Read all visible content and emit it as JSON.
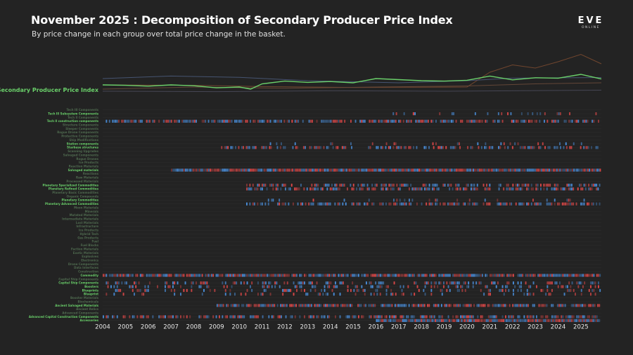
{
  "header": {
    "title": "November 2025 : Decomposition of Secondary Producer Price Index",
    "subtitle": "By price change in each group over total price change in the basket."
  },
  "logo": {
    "main": "EVE",
    "sub": "ONLINE"
  },
  "colors": {
    "background": "#232323",
    "index_line": "#6ad06a",
    "positive_change": "#e04848",
    "negative_change": "#4a8fdc",
    "active_label": "#6ad06a",
    "inactive_label": "#4f6a4f",
    "row_grid": "#2c2c2c"
  },
  "chart_data": {
    "type": "heatmap",
    "title": "November 2025 : Decomposition of Secondary Producer Price Index",
    "subtitle": "By price change in each group over total price change in the basket.",
    "x_axis": {
      "ticks": [
        "2004",
        "2005",
        "2006",
        "2007",
        "2008",
        "2009",
        "2010",
        "2011",
        "2012",
        "2013",
        "2014",
        "2015",
        "2016",
        "2017",
        "2018",
        "2019",
        "2020",
        "2021",
        "2022",
        "2023",
        "2024",
        "2025"
      ],
      "range": [
        2004,
        2025.9
      ]
    },
    "main_series": {
      "name": "Secondary Producer Price Index",
      "points": [
        [
          2004.0,
          0.5
        ],
        [
          2005.0,
          0.48
        ],
        [
          2006.0,
          0.44
        ],
        [
          2007.0,
          0.5
        ],
        [
          2008.0,
          0.46
        ],
        [
          2009.0,
          0.36
        ],
        [
          2010.0,
          0.4
        ],
        [
          2010.5,
          0.3
        ],
        [
          2011.0,
          0.55
        ],
        [
          2012.0,
          0.68
        ],
        [
          2013.0,
          0.62
        ],
        [
          2014.0,
          0.66
        ],
        [
          2015.0,
          0.6
        ],
        [
          2016.0,
          0.8
        ],
        [
          2017.0,
          0.75
        ],
        [
          2018.0,
          0.7
        ],
        [
          2019.0,
          0.68
        ],
        [
          2020.0,
          0.72
        ],
        [
          2021.0,
          0.92
        ],
        [
          2022.0,
          0.74
        ],
        [
          2023.0,
          0.84
        ],
        [
          2024.0,
          0.82
        ],
        [
          2025.0,
          1.0
        ],
        [
          2025.9,
          0.78
        ]
      ]
    },
    "background_series": [
      {
        "points": [
          [
            2004.0,
            0.5
          ],
          [
            2008.0,
            0.48
          ],
          [
            2011.0,
            0.42
          ],
          [
            2015.0,
            0.38
          ],
          [
            2020.0,
            0.4
          ],
          [
            2021.0,
            1.1
          ],
          [
            2022.0,
            1.45
          ],
          [
            2023.0,
            1.3
          ],
          [
            2024.0,
            1.6
          ],
          [
            2025.0,
            1.95
          ],
          [
            2025.9,
            1.5
          ]
        ]
      },
      {
        "points": [
          [
            2004.0,
            0.8
          ],
          [
            2007.0,
            0.92
          ],
          [
            2010.0,
            0.86
          ],
          [
            2013.0,
            0.7
          ],
          [
            2017.0,
            0.6
          ],
          [
            2020.0,
            0.7
          ],
          [
            2022.0,
            0.82
          ],
          [
            2025.9,
            0.85
          ]
        ]
      },
      {
        "points": [
          [
            2004.0,
            0.3
          ],
          [
            2008.0,
            0.4
          ],
          [
            2012.0,
            0.34
          ],
          [
            2016.0,
            0.4
          ],
          [
            2020.0,
            0.45
          ],
          [
            2023.0,
            0.55
          ],
          [
            2025.9,
            0.6
          ]
        ]
      },
      {
        "points": [
          [
            2004.0,
            0.2
          ],
          [
            2009.0,
            0.18
          ],
          [
            2014.0,
            0.22
          ],
          [
            2019.0,
            0.2
          ],
          [
            2025.9,
            0.25
          ]
        ]
      }
    ],
    "categories": [
      {
        "label": "Tech III Components",
        "active": false
      },
      {
        "label": "Tech III Subsystem Components",
        "active": true,
        "level": 0.15,
        "start": 2016.6
      },
      {
        "label": "Tech II Components",
        "active": false
      },
      {
        "label": "Tech II construction components",
        "active": true,
        "level": 0.7,
        "start": 2004.0
      },
      {
        "label": "Structure Components",
        "active": false
      },
      {
        "label": "Sleeper Components",
        "active": false
      },
      {
        "label": "Rogue Drone Components",
        "active": false
      },
      {
        "label": "Protective Components",
        "active": false
      },
      {
        "label": "Ship Modifications",
        "active": false
      },
      {
        "label": "Station components",
        "active": true,
        "level": 0.1,
        "start": 2011.0
      },
      {
        "label": "Starbase structures",
        "active": true,
        "level": 0.5,
        "start": 2009.2
      },
      {
        "label": "Scanning Upgrades",
        "active": false
      },
      {
        "label": "Salvaged Components",
        "active": false
      },
      {
        "label": "Rogue Drones",
        "active": false
      },
      {
        "label": "Ice Products",
        "active": false
      },
      {
        "label": "Reaction Materials",
        "active": false
      },
      {
        "label": "Salvaged materials",
        "active": true,
        "level": 1.0,
        "start": 2007.0
      },
      {
        "label": "Reactions",
        "active": false
      },
      {
        "label": "Raw Materials",
        "active": false
      },
      {
        "label": "Processed Materials",
        "active": false
      },
      {
        "label": "Planetary Specialized Commodities",
        "active": true,
        "level": 0.55,
        "start": 2010.3
      },
      {
        "label": "Planetary Refined Commodities",
        "active": true,
        "level": 0.6,
        "start": 2010.3
      },
      {
        "label": "Planetary Basic Commodities",
        "active": false
      },
      {
        "label": "Organic Compounds",
        "active": false
      },
      {
        "label": "Planetary Commodities",
        "active": true,
        "level": 0.1,
        "start": 2010.3
      },
      {
        "label": "Planetary Advanced Commodities",
        "active": true,
        "level": 0.6,
        "start": 2010.3
      },
      {
        "label": "Moon Materials",
        "active": false
      },
      {
        "label": "Minerals",
        "active": false
      },
      {
        "label": "Mutated Materials",
        "active": false
      },
      {
        "label": "Intermediate Materials",
        "active": false
      },
      {
        "label": "Lost Materials",
        "active": false
      },
      {
        "label": "Infrastructure",
        "active": false
      },
      {
        "label": "Ice Products",
        "active": false
      },
      {
        "label": "Hybrid Tech",
        "active": false
      },
      {
        "label": "Gas Products",
        "active": false
      },
      {
        "label": "Fuel",
        "active": false
      },
      {
        "label": "Fuel Blocks",
        "active": false
      },
      {
        "label": "Faction Materials",
        "active": false
      },
      {
        "label": "Exotic Materials",
        "active": false
      },
      {
        "label": "Explosives",
        "active": false
      },
      {
        "label": "Electronics",
        "active": false
      },
      {
        "label": "Drone Components",
        "active": false
      },
      {
        "label": "Data Interfaces",
        "active": false
      },
      {
        "label": "Construction",
        "active": false
      },
      {
        "label": "Commodity",
        "active": true,
        "level": 0.9,
        "start": 2004.0
      },
      {
        "label": "Capital Ship Components",
        "active": false
      },
      {
        "label": "Capital Ship Components",
        "active": true,
        "level": 0.4,
        "start": 2004.0
      },
      {
        "label": "Boosters",
        "active": true,
        "level": 0.3,
        "start": 2004.0
      },
      {
        "label": "Blueprints",
        "active": true,
        "level": 0.3,
        "start": 2004.0
      },
      {
        "label": "Blueprint",
        "active": true,
        "level": 0.2,
        "start": 2004.0
      },
      {
        "label": "Booster Materials",
        "active": false
      },
      {
        "label": "Biochemicals",
        "active": false
      },
      {
        "label": "Ancient Salvaged Materials",
        "active": true,
        "level": 0.8,
        "start": 2009.0
      },
      {
        "label": "Ancient Relics",
        "active": false
      },
      {
        "label": "Advanced Components",
        "active": false
      },
      {
        "label": "Advanced Capital Construction Components",
        "active": true,
        "level": 0.6,
        "start": 2004.0
      },
      {
        "label": "Accessories",
        "active": true,
        "level": 1.0,
        "start": 2016.0
      }
    ]
  }
}
